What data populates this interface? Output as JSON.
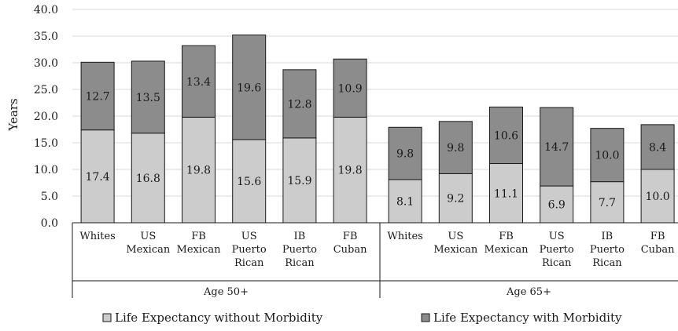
{
  "chart_data": {
    "type": "bar",
    "stacked": true,
    "ylabel": "Years",
    "ylim": [
      0,
      40
    ],
    "yticks": [
      "0.0",
      "5.0",
      "10.0",
      "15.0",
      "20.0",
      "25.0",
      "30.0",
      "35.0",
      "40.0"
    ],
    "grid": true,
    "legend_position": "bottom",
    "groups": [
      "Age 50+",
      "Age 65+"
    ],
    "categories": [
      [
        "Whites"
      ],
      [
        "US",
        "Mexican"
      ],
      [
        "FB",
        "Mexican"
      ],
      [
        "US",
        "Puerto",
        "Rican"
      ],
      [
        "IB",
        "Puerto",
        "Rican"
      ],
      [
        "FB",
        "Cuban"
      ],
      [
        "Whites"
      ],
      [
        "US",
        "Mexican"
      ],
      [
        "FB",
        "Mexican"
      ],
      [
        "US",
        "Puerto",
        "Rican"
      ],
      [
        "IB",
        "Puerto",
        "Rican"
      ],
      [
        "FB",
        "Cuban"
      ]
    ],
    "series": [
      {
        "name": "Life Expectancy without Morbidity",
        "color": "#cccccc",
        "values": [
          17.4,
          16.8,
          19.8,
          15.6,
          15.9,
          19.8,
          8.1,
          9.2,
          11.1,
          6.9,
          7.7,
          10.0
        ],
        "labels": [
          "17.4",
          "16.8",
          "19.8",
          "15.6",
          "15.9",
          "19.8",
          "8.1",
          "9.2",
          "11.1",
          "6.9",
          "7.7",
          "10.0"
        ]
      },
      {
        "name": "Life Expectancy with Morbidity",
        "color": "#8c8c8c",
        "values": [
          12.7,
          13.5,
          13.4,
          19.6,
          12.8,
          10.9,
          9.8,
          9.8,
          10.6,
          14.7,
          10.0,
          8.4
        ],
        "labels": [
          "12.7",
          "13.5",
          "13.4",
          "19.6",
          "12.8",
          "10.9",
          "9.8",
          "9.8",
          "10.6",
          "14.7",
          "10.0",
          "8.4"
        ]
      }
    ]
  }
}
